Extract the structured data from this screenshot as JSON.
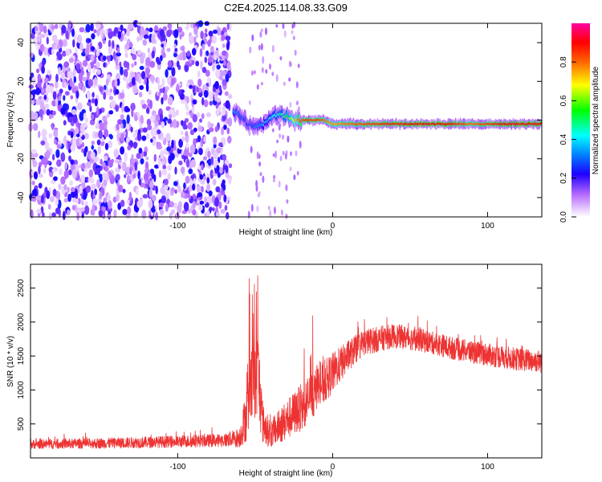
{
  "title": "C2E4.2025.114.08.33.G09",
  "chart_data": [
    {
      "type": "heatmap",
      "xlabel": "Height of straight line (km)",
      "ylabel": "Frequency (Hz)",
      "xlim": [
        -195,
        135
      ],
      "ylim": [
        -50,
        50
      ],
      "xticks": [
        -100,
        0,
        100
      ],
      "xtick_labels": [
        "-100",
        "0",
        "100"
      ],
      "yticks": [
        -40,
        -20,
        0,
        20,
        40
      ],
      "ytick_labels": [
        "-40",
        "-20",
        "0",
        "20",
        "40"
      ],
      "colorbar": {
        "label": "Normalized spectral amplitude",
        "range": [
          0,
          1
        ],
        "ticks": [
          0.0,
          0.2,
          0.4,
          0.6,
          0.8
        ],
        "tick_labels": [
          "0.0",
          "0.2",
          "0.4",
          "0.6",
          "0.8"
        ],
        "colormap": "rainbow (violet → blue → cyan → green → yellow → red → magenta)"
      },
      "ridge": [
        {
          "x": -64,
          "y": 5,
          "amp": 0.35
        },
        {
          "x": -60,
          "y": 3,
          "amp": 0.3
        },
        {
          "x": -55,
          "y": -2,
          "amp": 0.25
        },
        {
          "x": -50,
          "y": -4,
          "amp": 0.3
        },
        {
          "x": -45,
          "y": -2,
          "amp": 0.35
        },
        {
          "x": -40,
          "y": 1,
          "amp": 0.4
        },
        {
          "x": -35,
          "y": 3,
          "amp": 0.45
        },
        {
          "x": -30,
          "y": 2,
          "amp": 0.5
        },
        {
          "x": -25,
          "y": 0,
          "amp": 0.7
        },
        {
          "x": -20,
          "y": 0,
          "amp": 0.85
        },
        {
          "x": -10,
          "y": 0,
          "amp": 0.85
        },
        {
          "x": -5,
          "y": 0,
          "amp": 0.8
        },
        {
          "x": 0,
          "y": -2,
          "amp": 0.75
        },
        {
          "x": 10,
          "y": -2,
          "amp": 0.8
        },
        {
          "x": 25,
          "y": -2,
          "amp": 0.85
        },
        {
          "x": 50,
          "y": -2,
          "amp": 0.9
        },
        {
          "x": 75,
          "y": -2,
          "amp": 0.9
        },
        {
          "x": 90,
          "y": -2,
          "amp": 0.8
        },
        {
          "x": 110,
          "y": -2,
          "amp": 0.9
        },
        {
          "x": 135,
          "y": -2,
          "amp": 0.9
        }
      ],
      "noise_region_x": [
        -195,
        -66
      ]
    },
    {
      "type": "line",
      "xlabel": "Height of straight line (km)",
      "ylabel": "SNR (10 * v/v)",
      "xlim": [
        -195,
        135
      ],
      "ylim": [
        0,
        2850
      ],
      "xticks": [
        -100,
        0,
        100
      ],
      "xtick_labels": [
        "-100",
        "0",
        "100"
      ],
      "yticks": [
        500,
        1000,
        1500,
        2000,
        2500
      ],
      "ytick_labels": [
        "500",
        "1000",
        "1500",
        "2000",
        "2500"
      ],
      "color": "#ee3333",
      "envelope": [
        {
          "x": -195,
          "mean": 200,
          "spread": 70
        },
        {
          "x": -150,
          "mean": 215,
          "spread": 80
        },
        {
          "x": -100,
          "mean": 240,
          "spread": 90
        },
        {
          "x": -70,
          "mean": 260,
          "spread": 100
        },
        {
          "x": -60,
          "mean": 300,
          "spread": 150
        },
        {
          "x": -55,
          "mean": 700,
          "spread": 450
        },
        {
          "x": -51,
          "mean": 1300,
          "spread": 700
        },
        {
          "x": -48,
          "mean": 1200,
          "spread": 700
        },
        {
          "x": -45,
          "mean": 500,
          "spread": 300
        },
        {
          "x": -40,
          "mean": 350,
          "spread": 200
        },
        {
          "x": -30,
          "mean": 550,
          "spread": 300
        },
        {
          "x": -20,
          "mean": 750,
          "spread": 350
        },
        {
          "x": -10,
          "mean": 1000,
          "spread": 350
        },
        {
          "x": 0,
          "mean": 1250,
          "spread": 300
        },
        {
          "x": 10,
          "mean": 1500,
          "spread": 230
        },
        {
          "x": 20,
          "mean": 1700,
          "spread": 200
        },
        {
          "x": 40,
          "mean": 1800,
          "spread": 180
        },
        {
          "x": 60,
          "mean": 1720,
          "spread": 170
        },
        {
          "x": 80,
          "mean": 1600,
          "spread": 170
        },
        {
          "x": 100,
          "mean": 1520,
          "spread": 170
        },
        {
          "x": 120,
          "mean": 1450,
          "spread": 170
        },
        {
          "x": 135,
          "mean": 1420,
          "spread": 170
        }
      ]
    }
  ]
}
